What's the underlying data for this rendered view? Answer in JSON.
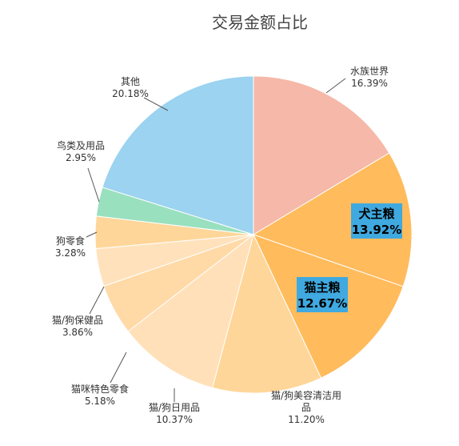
{
  "chart_data": {
    "type": "pie",
    "title": "交易金额占比",
    "slices": [
      {
        "label": "水族世界",
        "value": 16.39,
        "display": "16.39%",
        "color": "#f6b8a8"
      },
      {
        "label": "犬主粮",
        "value": 13.92,
        "display": "13.92%",
        "color": "#ffbb5c",
        "highlight": true
      },
      {
        "label": "猫主粮",
        "value": 12.67,
        "display": "12.67%",
        "color": "#ffbb5c",
        "highlight": true
      },
      {
        "label": "猫/狗美容清洁用品",
        "label_lines": [
          "猫/狗美容清洁用",
          "品"
        ],
        "value": 11.2,
        "display": "11.20%",
        "color": "#ffd699"
      },
      {
        "label": "猫/狗日用品",
        "value": 10.37,
        "display": "10.37%",
        "color": "#ffe0b8"
      },
      {
        "label": "猫咪特色零食",
        "value": 5.18,
        "display": "5.18%",
        "color": "#ffd9a6"
      },
      {
        "label": "猫/狗保健品",
        "value": 3.86,
        "display": "3.86%",
        "color": "#ffe2bc"
      },
      {
        "label": "狗零食",
        "value": 3.28,
        "display": "3.28%",
        "color": "#ffd699"
      },
      {
        "label": "鸟类及用品",
        "value": 2.95,
        "display": "2.95%",
        "color": "#99e0bf"
      },
      {
        "label": "其他",
        "value": 20.18,
        "display": "20.18%",
        "color": "#9bd3f0"
      }
    ]
  }
}
